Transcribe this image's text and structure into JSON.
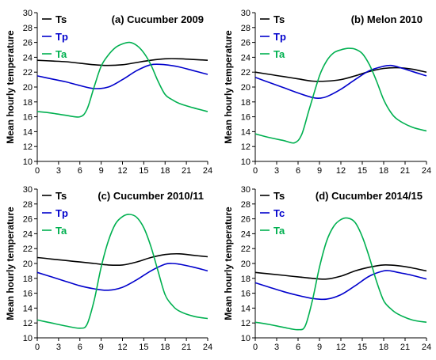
{
  "colors": {
    "Ts": "#000000",
    "Tp": "#0000cc",
    "Tc": "#0000cc",
    "Ta": "#00b050"
  },
  "chart_data": [
    {
      "type": "line",
      "title": "(a) Cucumber 2009",
      "ylabel": "Mean hourly temperature",
      "xlabel": "",
      "xlim": [
        0,
        24
      ],
      "ylim": [
        10,
        30
      ],
      "xticks": [
        0,
        3,
        6,
        9,
        12,
        15,
        18,
        21,
        24
      ],
      "yticks": [
        10,
        12,
        14,
        16,
        18,
        20,
        22,
        24,
        26,
        28,
        30
      ],
      "series": [
        {
          "name": "Ts",
          "x": [
            0,
            2,
            4,
            6,
            8,
            10,
            12,
            14,
            16,
            18,
            20,
            22,
            24
          ],
          "values": [
            23.6,
            23.5,
            23.4,
            23.2,
            23.0,
            22.9,
            23.0,
            23.3,
            23.6,
            23.8,
            23.8,
            23.7,
            23.6
          ]
        },
        {
          "name": "Tp",
          "x": [
            0,
            2,
            4,
            6,
            8,
            10,
            12,
            14,
            16,
            18,
            20,
            22,
            24
          ],
          "values": [
            21.5,
            21.1,
            20.7,
            20.2,
            19.8,
            20.0,
            21.0,
            22.2,
            23.0,
            23.0,
            22.7,
            22.2,
            21.7
          ]
        },
        {
          "name": "Ta",
          "x": [
            0,
            2,
            4,
            6,
            7,
            8,
            9,
            10,
            11,
            12,
            13,
            14,
            15,
            16,
            17,
            18,
            19,
            20,
            22,
            24
          ],
          "values": [
            16.7,
            16.5,
            16.2,
            16.0,
            17.0,
            20.0,
            22.8,
            24.3,
            25.3,
            25.8,
            26.0,
            25.6,
            24.6,
            23.0,
            20.8,
            19.0,
            18.3,
            17.8,
            17.2,
            16.7
          ]
        }
      ]
    },
    {
      "type": "line",
      "title": "(b) Melon 2010",
      "ylabel": "Mean hourly temperature",
      "xlabel": "",
      "xlim": [
        0,
        24
      ],
      "ylim": [
        10,
        30
      ],
      "xticks": [
        0,
        3,
        6,
        9,
        12,
        15,
        18,
        21,
        24
      ],
      "yticks": [
        10,
        12,
        14,
        16,
        18,
        20,
        22,
        24,
        26,
        28,
        30
      ],
      "series": [
        {
          "name": "Ts",
          "x": [
            0,
            2,
            4,
            6,
            8,
            10,
            12,
            14,
            16,
            18,
            20,
            22,
            24
          ],
          "values": [
            22.0,
            21.7,
            21.4,
            21.1,
            20.8,
            20.8,
            21.0,
            21.5,
            22.1,
            22.5,
            22.6,
            22.4,
            22.0
          ]
        },
        {
          "name": "Tp",
          "x": [
            0,
            2,
            4,
            6,
            8,
            9,
            10,
            12,
            14,
            16,
            18,
            19,
            20,
            22,
            24
          ],
          "values": [
            21.3,
            20.6,
            19.9,
            19.2,
            18.6,
            18.5,
            18.7,
            19.7,
            21.0,
            22.2,
            22.8,
            22.9,
            22.7,
            22.1,
            21.5
          ]
        },
        {
          "name": "Ta",
          "x": [
            0,
            2,
            4,
            5.5,
            6.5,
            7.5,
            9,
            10,
            11,
            12,
            13,
            14,
            15,
            16,
            17,
            18,
            19,
            20,
            22,
            24
          ],
          "values": [
            13.7,
            13.2,
            12.8,
            12.5,
            13.6,
            16.8,
            21.5,
            23.5,
            24.6,
            25.0,
            25.2,
            25.1,
            24.5,
            23.0,
            20.8,
            18.3,
            16.6,
            15.6,
            14.6,
            14.1
          ]
        }
      ]
    },
    {
      "type": "line",
      "title": "(c) Cucumber 2010/11",
      "ylabel": "Mean hourly temperature",
      "xlabel": "",
      "xlim": [
        0,
        24
      ],
      "ylim": [
        10,
        30
      ],
      "xticks": [
        0,
        3,
        6,
        9,
        12,
        15,
        18,
        21,
        24
      ],
      "yticks": [
        10,
        12,
        14,
        16,
        18,
        20,
        22,
        24,
        26,
        28,
        30
      ],
      "series": [
        {
          "name": "Ts",
          "x": [
            0,
            2,
            4,
            6,
            8,
            10,
            12,
            14,
            16,
            18,
            20,
            22,
            24
          ],
          "values": [
            20.8,
            20.6,
            20.4,
            20.2,
            20.0,
            19.8,
            19.8,
            20.2,
            20.8,
            21.2,
            21.3,
            21.1,
            20.9
          ]
        },
        {
          "name": "Tp",
          "x": [
            0,
            2,
            4,
            6,
            8,
            10,
            12,
            14,
            16,
            18,
            19,
            20,
            22,
            24
          ],
          "values": [
            18.8,
            18.2,
            17.6,
            17.0,
            16.6,
            16.4,
            16.8,
            17.8,
            19.0,
            19.9,
            20.0,
            19.9,
            19.5,
            19.0
          ]
        },
        {
          "name": "Ta",
          "x": [
            0,
            2,
            4,
            6,
            7,
            8,
            9,
            10,
            11,
            12,
            13,
            14,
            15,
            16,
            17,
            18,
            19,
            20,
            22,
            24
          ],
          "values": [
            12.4,
            12.0,
            11.6,
            11.3,
            11.8,
            15.0,
            19.5,
            23.0,
            25.3,
            26.3,
            26.6,
            26.2,
            24.8,
            22.3,
            19.0,
            15.8,
            14.4,
            13.6,
            12.9,
            12.6
          ]
        }
      ]
    },
    {
      "type": "line",
      "title": "(d) Cucumber 2014/15",
      "ylabel": "Mean hourly temperature",
      "xlabel": "",
      "xlim": [
        0,
        24
      ],
      "ylim": [
        10,
        30
      ],
      "xticks": [
        0,
        3,
        6,
        9,
        12,
        15,
        18,
        21,
        24
      ],
      "yticks": [
        10,
        12,
        14,
        16,
        18,
        20,
        22,
        24,
        26,
        28,
        30
      ],
      "series": [
        {
          "name": "Ts",
          "x": [
            0,
            2,
            4,
            6,
            8,
            10,
            12,
            14,
            16,
            18,
            20,
            22,
            24
          ],
          "values": [
            18.8,
            18.6,
            18.4,
            18.2,
            18.0,
            17.9,
            18.3,
            19.0,
            19.5,
            19.8,
            19.7,
            19.4,
            19.0
          ]
        },
        {
          "name": "Tc",
          "x": [
            0,
            2,
            4,
            6,
            8,
            10,
            12,
            14,
            16,
            18,
            19,
            20,
            22,
            24
          ],
          "values": [
            17.4,
            16.8,
            16.2,
            15.7,
            15.3,
            15.2,
            15.8,
            17.0,
            18.3,
            19.0,
            19.0,
            18.8,
            18.4,
            17.9
          ]
        },
        {
          "name": "Ta",
          "x": [
            0,
            2,
            4,
            6,
            7,
            8,
            9,
            10,
            11,
            12,
            13,
            14,
            15,
            16,
            17,
            18,
            19,
            20,
            22,
            24
          ],
          "values": [
            12.1,
            11.8,
            11.4,
            11.1,
            11.6,
            15.0,
            19.5,
            23.0,
            25.0,
            25.9,
            26.1,
            25.5,
            23.6,
            20.8,
            17.6,
            15.0,
            13.9,
            13.2,
            12.4,
            12.1
          ]
        }
      ]
    }
  ]
}
